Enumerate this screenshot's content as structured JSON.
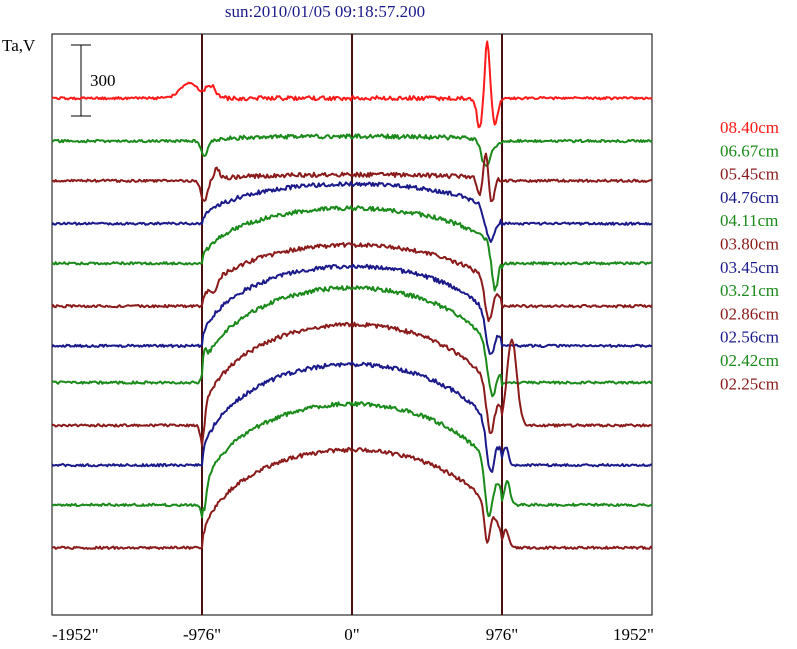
{
  "chart_data": {
    "type": "line",
    "title": "sun:2010/01/05 09:18:57.200",
    "ylabel": "Ta,V",
    "xlabel": "",
    "scale_bar_label": "300",
    "x_ticks": [
      "-1952\"",
      "-976\"",
      "0\"",
      "976\"",
      "1952\""
    ],
    "x_tick_values": [
      -1952,
      -976,
      0,
      976,
      1952
    ],
    "xlim": [
      -1952,
      1952
    ],
    "reference_lines_x": [
      -976,
      0,
      976
    ],
    "colors": {
      "red": "#ff1a1a",
      "green": "#1a8a1a",
      "maroon": "#8b1a1a",
      "blue": "#1a1a8b",
      "axis": "#000000"
    },
    "series": [
      {
        "name": "08.40cm",
        "color": "#ff1a1a",
        "baseline": 490,
        "profile": "peaked",
        "disk": 0,
        "features": [
          [
            -1060,
            50,
            80
          ],
          [
            -920,
            40,
            45
          ],
          [
            830,
            -95,
            25
          ],
          [
            880,
            185,
            22
          ],
          [
            930,
            -90,
            25
          ]
        ]
      },
      {
        "name": "06.67cm",
        "color": "#1a8a1a",
        "baseline": 350,
        "profile": "peaked",
        "disk": 30,
        "features": [
          [
            -960,
            -50,
            30
          ],
          [
            870,
            -90,
            40
          ],
          [
            940,
            -20,
            30
          ]
        ]
      },
      {
        "name": "05.45cm",
        "color": "#8b1a1a",
        "baseline": 220,
        "profile": "peaked",
        "disk": 40,
        "features": [
          [
            -960,
            -70,
            30
          ],
          [
            -880,
            30,
            25
          ],
          [
            830,
            -60,
            22
          ],
          [
            870,
            90,
            18
          ],
          [
            910,
            -80,
            22
          ]
        ]
      },
      {
        "name": "04.76cm",
        "color": "#1a1a8b",
        "baseline": 80,
        "profile": "disk",
        "disk": 130,
        "features": [
          [
            900,
            -110,
            45
          ]
        ]
      },
      {
        "name": "04.11cm",
        "color": "#1a8a1a",
        "baseline": -50,
        "profile": "disk",
        "disk": 180,
        "features": [
          [
            930,
            -140,
            30
          ]
        ]
      },
      {
        "name": "03.80cm",
        "color": "#8b1a1a",
        "baseline": -190,
        "profile": "disk",
        "disk": 200,
        "features": [
          [
            -900,
            -40,
            25
          ],
          [
            890,
            -130,
            35
          ]
        ]
      },
      {
        "name": "03.45cm",
        "color": "#1a1a8b",
        "baseline": -320,
        "profile": "disk",
        "disk": 260,
        "features": [
          [
            900,
            -130,
            40
          ]
        ]
      },
      {
        "name": "03.21cm",
        "color": "#1a8a1a",
        "baseline": -440,
        "profile": "disk",
        "disk": 310,
        "features": [
          [
            -960,
            50,
            20
          ],
          [
            910,
            -150,
            40
          ]
        ]
      },
      {
        "name": "02.86cm",
        "color": "#8b1a1a",
        "baseline": -580,
        "profile": "disk",
        "disk": 330,
        "features": [
          [
            -970,
            -70,
            20
          ],
          [
            900,
            -150,
            35
          ],
          [
            1040,
            280,
            45
          ]
        ]
      },
      {
        "name": "02.56cm",
        "color": "#1a1a8b",
        "baseline": -710,
        "profile": "disk",
        "disk": 330,
        "features": [
          [
            900,
            -150,
            35
          ],
          [
            1000,
            60,
            25
          ]
        ]
      },
      {
        "name": "02.42cm",
        "color": "#1a8a1a",
        "baseline": -840,
        "profile": "disk",
        "disk": 330,
        "features": [
          [
            -960,
            -70,
            20
          ],
          [
            890,
            -170,
            35
          ],
          [
            1010,
            80,
            25
          ]
        ]
      },
      {
        "name": "02.25cm",
        "color": "#8b1a1a",
        "baseline": -980,
        "profile": "disk",
        "disk": 320,
        "features": [
          [
            880,
            -120,
            25
          ],
          [
            1000,
            60,
            25
          ]
        ]
      }
    ],
    "ylim": [
      -1200,
      700
    ],
    "grid": false,
    "legend_position": "right"
  }
}
